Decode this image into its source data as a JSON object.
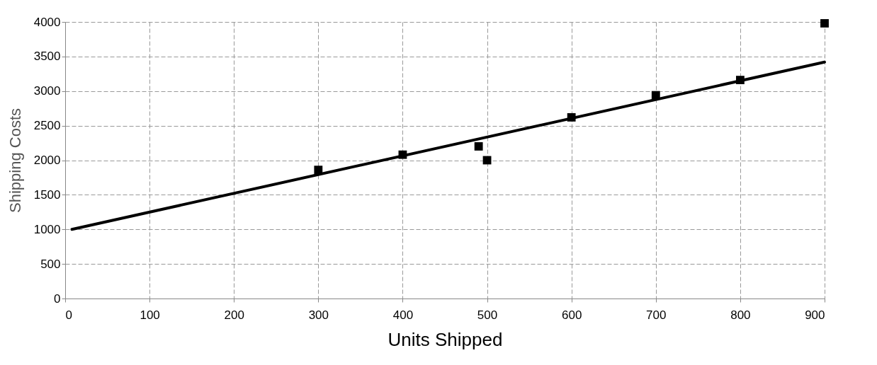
{
  "chart_data": {
    "type": "scatter",
    "xlabel": "Units Shipped",
    "ylabel": "Shipping Costs",
    "xlim": [
      0,
      900
    ],
    "ylim": [
      0,
      4000
    ],
    "xticks": [
      0,
      100,
      200,
      300,
      400,
      500,
      600,
      700,
      800,
      900
    ],
    "yticks": [
      0,
      500,
      1000,
      1500,
      2000,
      2500,
      3000,
      3500,
      4000
    ],
    "grid": true,
    "series": [
      {
        "color": "#000000",
        "marker": "square",
        "x": [
          300,
          400,
          490,
          500,
          600,
          700,
          800,
          900
        ],
        "values": [
          1860,
          2080,
          2200,
          2000,
          2620,
          2940,
          3160,
          3980
        ]
      },
      {
        "type": "line",
        "color": "#000000",
        "x": [
          8,
          900
        ],
        "values": [
          1000,
          3420
        ]
      }
    ]
  }
}
